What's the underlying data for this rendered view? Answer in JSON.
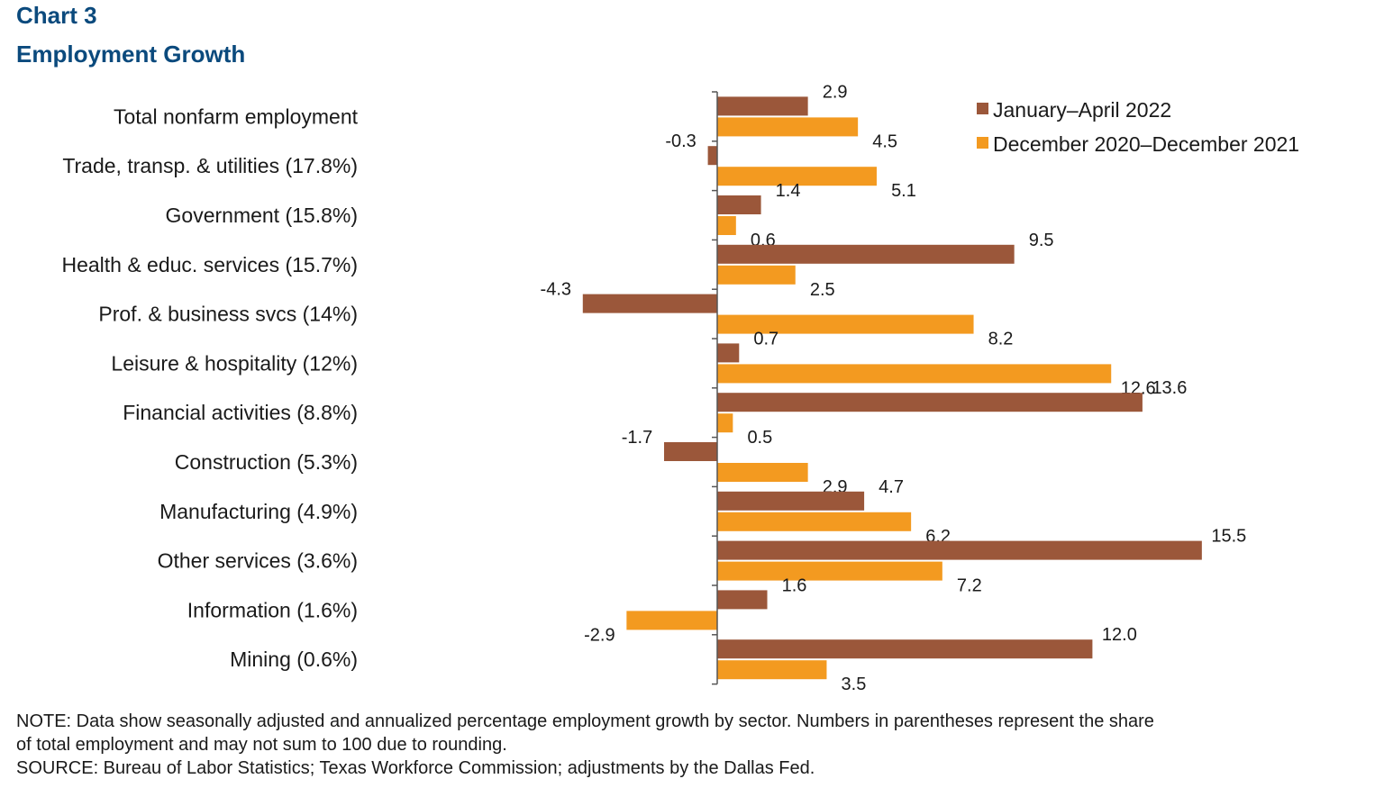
{
  "chart_number": "Chart 3",
  "title": "Employment Growth",
  "note_line1": "NOTE: Data show seasonally adjusted and annualized percentage employment growth by sector. Numbers in parentheses represent the share",
  "note_line2": "of total employment and may not sum to 100 due to rounding.",
  "source": "SOURCE: Bureau of Labor Statistics; Texas Workforce Commission; adjustments by the Dallas Fed.",
  "chart_data": {
    "type": "bar",
    "orientation": "horizontal",
    "categories": [
      "Total nonfarm employment",
      "Trade, transp. & utilities (17.8%)",
      "Government (15.8%)",
      "Health & educ. services (15.7%)",
      "Prof. & business svcs (14%)",
      "Leisure & hospitality (12%)",
      "Financial activities (8.8%)",
      "Construction (5.3%)",
      "Manufacturing (4.9%)",
      "Other services (3.6%)",
      "Information (1.6%)",
      "Mining (0.6%)"
    ],
    "series": [
      {
        "name": "January–April 2022",
        "color": "#9b573a",
        "values": [
          2.9,
          -0.3,
          1.4,
          9.5,
          -4.3,
          0.7,
          13.6,
          -1.7,
          4.7,
          15.5,
          1.6,
          12.0
        ],
        "labels": [
          "2.9",
          "-0.3",
          "1.4",
          "9.5",
          "-4.3",
          "0.7",
          "13.6",
          "-1.7",
          "4.7",
          "15.5",
          "1.6",
          "12.0"
        ]
      },
      {
        "name": "December 2020–December 2021",
        "color": "#f39a20",
        "values": [
          4.5,
          5.1,
          0.6,
          2.5,
          8.2,
          12.6,
          0.5,
          2.9,
          6.2,
          7.2,
          -2.9,
          3.5
        ],
        "labels": [
          "4.5",
          "5.1",
          "0.6",
          "2.5",
          "8.2",
          "12.6",
          "0.5",
          "2.9",
          "6.2",
          "7.2",
          "-2.9",
          "3.5"
        ]
      }
    ],
    "legend_position": "top-right",
    "grid": false
  }
}
